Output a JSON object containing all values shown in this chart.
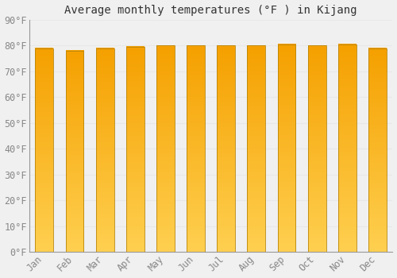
{
  "title": "Average monthly temperatures (°F ) in Kijang",
  "months": [
    "Jan",
    "Feb",
    "Mar",
    "Apr",
    "May",
    "Jun",
    "Jul",
    "Aug",
    "Sep",
    "Oct",
    "Nov",
    "Dec"
  ],
  "values": [
    79,
    78,
    79,
    79.5,
    80,
    80,
    80,
    80,
    80.5,
    80,
    80.5,
    79
  ],
  "ylim": [
    0,
    90
  ],
  "yticks": [
    0,
    10,
    20,
    30,
    40,
    50,
    60,
    70,
    80,
    90
  ],
  "ytick_labels": [
    "0°F",
    "10°F",
    "20°F",
    "30°F",
    "40°F",
    "50°F",
    "60°F",
    "70°F",
    "80°F",
    "90°F"
  ],
  "bar_color_top": "#F5A000",
  "bar_color_bottom": "#FFD050",
  "bar_edge_color": "#B8860B",
  "background_color": "#f0f0f0",
  "plot_bg_color": "#f0f0f0",
  "grid_color": "#e8e8e8",
  "title_fontsize": 10,
  "tick_fontsize": 8.5,
  "font_family": "monospace",
  "bar_width": 0.6
}
